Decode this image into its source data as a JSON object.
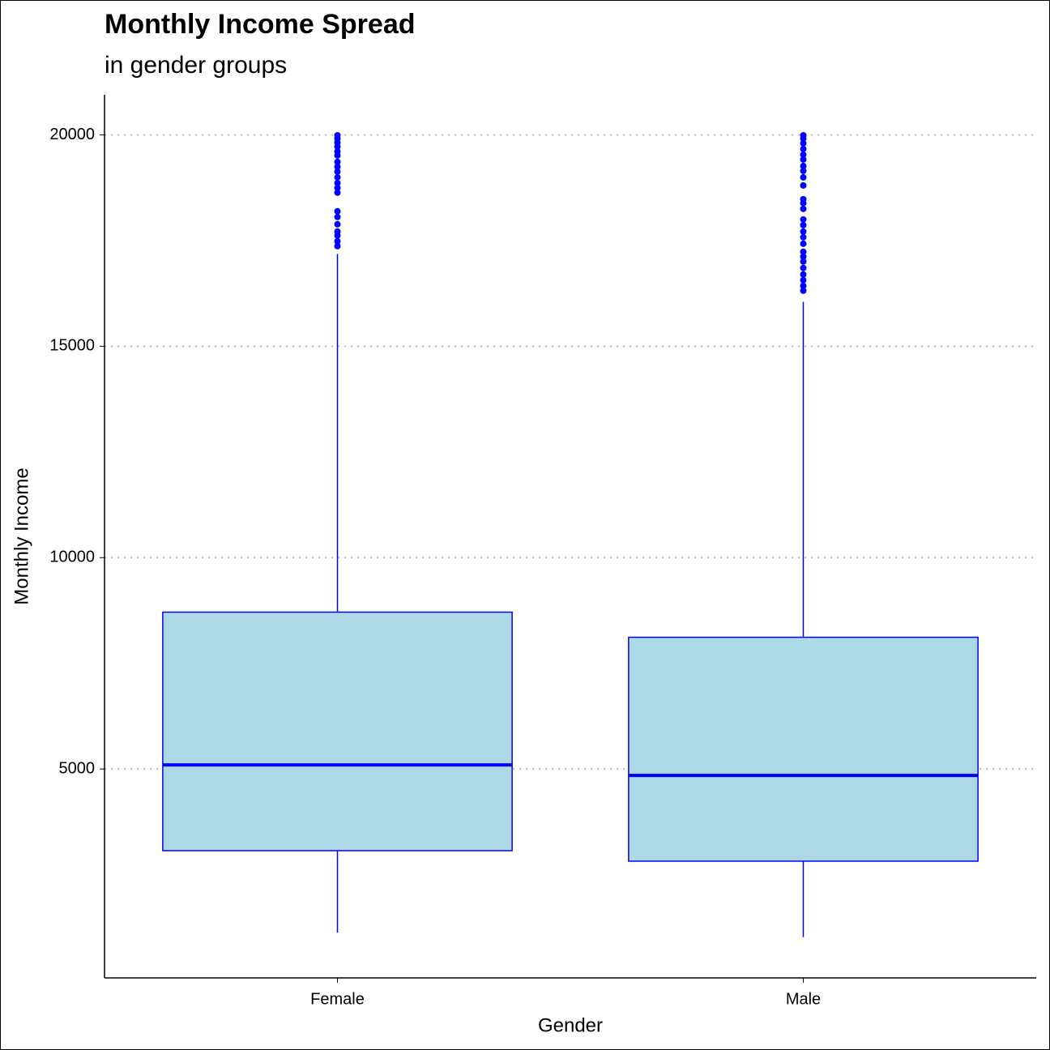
{
  "chart_data": {
    "type": "box",
    "title": "Monthly Income Spread",
    "subtitle": "in gender groups",
    "x_label": "Gender",
    "y_label": "Monthly Income",
    "categories": [
      "Female",
      "Male"
    ],
    "boxes": [
      {
        "min": 1129,
        "q1": 3069,
        "median": 5096,
        "q3": 8711,
        "max": 17182,
        "outliers": [
          17370,
          17485,
          17619,
          17714,
          17887,
          18059,
          18193,
          18633,
          18748,
          18862,
          18996,
          19130,
          19245,
          19360,
          19513,
          19608,
          19723,
          19819,
          19915,
          19991
        ]
      },
      {
        "min": 1023,
        "q1": 2820,
        "median": 4847,
        "q3": 8117,
        "max": 16052,
        "outliers": [
          16316,
          16431,
          16565,
          16699,
          16852,
          17005,
          17120,
          17235,
          17427,
          17580,
          17714,
          17867,
          18001,
          18250,
          18384,
          18480,
          18805,
          18996,
          19149,
          19264,
          19417,
          19532,
          19666,
          19800,
          19915,
          19991
        ]
      }
    ],
    "fill": "#add8e6",
    "color": "#0000ff",
    "ylim": [
      59,
      20949
    ],
    "yticks": [
      5000,
      10000,
      15000,
      20000
    ],
    "grid": "y"
  }
}
